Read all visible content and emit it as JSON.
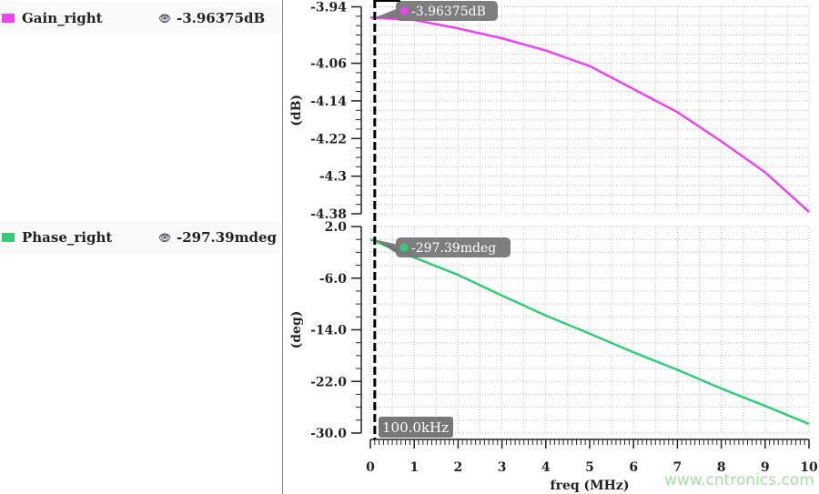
{
  "legend": [
    {
      "name": "Gain_right",
      "value": "-3.96375dB",
      "color": "#ee44ee",
      "icon": "eye-icon"
    },
    {
      "name": "Phase_right",
      "value": "-297.39mdeg",
      "color": "#33cc77",
      "icon": "eye-icon"
    }
  ],
  "cursor": {
    "label": "100.0kHz",
    "freq_mhz": 0.1
  },
  "watermark": "www.cntronics.com",
  "chart_data": [
    {
      "type": "line",
      "ylabel": "(dB)",
      "xlabel": "freq (MHz)",
      "xlim": [
        0,
        10
      ],
      "ylim": [
        -4.38,
        -3.94
      ],
      "yticks": [
        "-3.94",
        "-4.06",
        "-4.14",
        "-4.22",
        "-4.3",
        "-4.38"
      ],
      "ytick_values": [
        -3.94,
        -4.06,
        -4.14,
        -4.22,
        -4.3,
        -4.38
      ],
      "grid": true,
      "series": [
        {
          "name": "Gain_right",
          "color": "#ee44ee",
          "x": [
            0,
            1,
            2,
            3,
            4,
            5,
            6,
            7,
            8,
            9,
            10
          ],
          "y": [
            -3.963,
            -3.968,
            -3.986,
            -4.007,
            -4.033,
            -4.066,
            -4.115,
            -4.164,
            -4.226,
            -4.292,
            -4.376
          ]
        }
      ],
      "marker_label": "-3.96375dB"
    },
    {
      "type": "line",
      "ylabel": "(deg)",
      "xlabel": "freq (MHz)",
      "xlim": [
        0,
        10
      ],
      "ylim": [
        -30,
        2
      ],
      "yticks": [
        "2.0",
        "-6.0",
        "-14.0",
        "-22.0",
        "-30.0"
      ],
      "ytick_values": [
        2,
        -6,
        -14,
        -22,
        -30
      ],
      "grid": true,
      "series": [
        {
          "name": "Phase_right",
          "color": "#33cc77",
          "x": [
            0,
            1,
            2,
            3,
            4,
            5,
            6,
            7,
            8,
            9,
            10
          ],
          "y": [
            0,
            -2.8,
            -5.5,
            -8.7,
            -11.8,
            -14.6,
            -17.5,
            -20.2,
            -23.1,
            -25.8,
            -28.6
          ]
        }
      ],
      "marker_label": "-297.39mdeg"
    }
  ],
  "xticks": [
    "0",
    "1",
    "2",
    "3",
    "4",
    "5",
    "6",
    "7",
    "8",
    "9",
    "10"
  ]
}
